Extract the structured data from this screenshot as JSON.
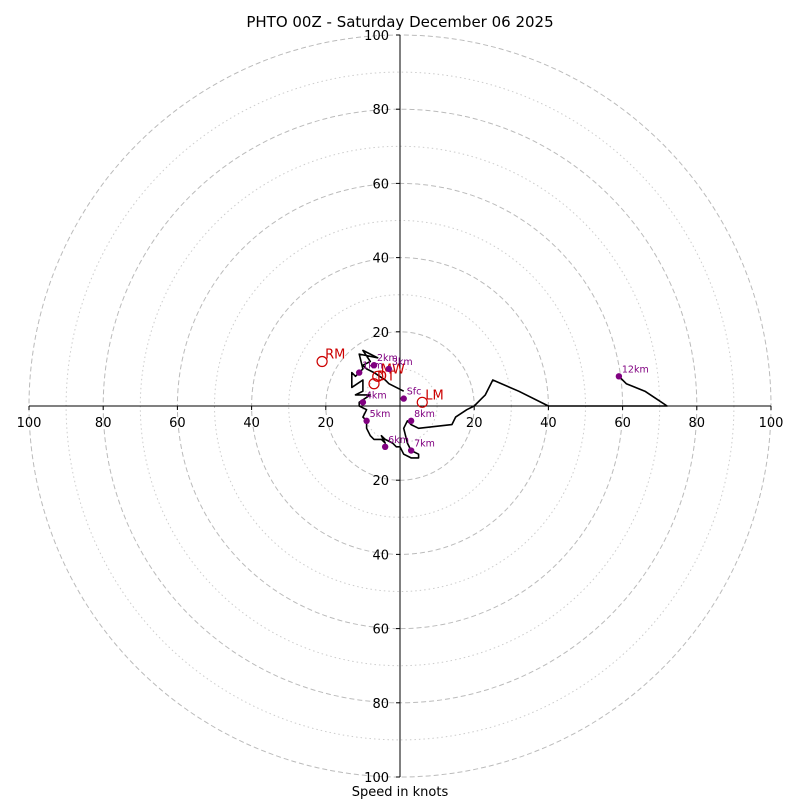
{
  "chart_data": {
    "type": "hodograph",
    "title": "PHTO 00Z - Saturday December 06 2025",
    "xlabel": "Speed in knots",
    "units": "knots",
    "range": [
      -100,
      100
    ],
    "x_ticks": [
      -100,
      -80,
      -60,
      -40,
      -20,
      20,
      40,
      60,
      80,
      100
    ],
    "y_ticks": [
      -100,
      -80,
      -60,
      -40,
      -20,
      20,
      40,
      60,
      80,
      100
    ],
    "tick_labels_abs": true,
    "rings_major": [
      20,
      40,
      60,
      80,
      100
    ],
    "rings_minor": [
      10,
      30,
      50,
      70,
      90
    ],
    "colors": {
      "trace": "#000000",
      "height": "#800080",
      "motion": "#cc0000",
      "grid_major": "#bbbbbb",
      "grid_minor": "#cccccc"
    },
    "trace": [
      [
        1,
        4
      ],
      [
        -3,
        6
      ],
      [
        -4,
        7
      ],
      [
        -7,
        9
      ],
      [
        -9,
        10
      ],
      [
        -10,
        11
      ],
      [
        -8,
        12
      ],
      [
        -10,
        15
      ],
      [
        -6,
        13
      ],
      [
        -11,
        14
      ],
      [
        -10,
        10
      ],
      [
        -12,
        8
      ],
      [
        -13,
        9
      ],
      [
        -13,
        5
      ],
      [
        -10,
        7
      ],
      [
        -10,
        4
      ],
      [
        -12,
        3
      ],
      [
        -10,
        3
      ],
      [
        -8,
        3
      ],
      [
        -11,
        1
      ],
      [
        -11,
        0
      ],
      [
        -9,
        -1
      ],
      [
        -10,
        -3
      ],
      [
        -9,
        -4
      ],
      [
        -9,
        -6
      ],
      [
        -8,
        -8
      ],
      [
        -7,
        -9
      ],
      [
        -5,
        -9
      ],
      [
        -4,
        -10
      ],
      [
        -5,
        -8
      ],
      [
        -4,
        -9
      ],
      [
        -2,
        -10
      ],
      [
        -1,
        -11
      ],
      [
        0,
        -11
      ],
      [
        1,
        -13
      ],
      [
        3,
        -14
      ],
      [
        5,
        -14
      ],
      [
        5,
        -13
      ],
      [
        3,
        -12
      ],
      [
        2,
        -10
      ],
      [
        1,
        -6
      ],
      [
        2,
        -4
      ],
      [
        3,
        -5
      ],
      [
        5,
        -6
      ],
      [
        14,
        -5
      ],
      [
        15,
        -3
      ],
      [
        18,
        -1
      ],
      [
        20,
        0
      ],
      [
        22,
        2
      ],
      [
        23,
        3
      ],
      [
        25,
        7
      ],
      [
        32,
        4
      ],
      [
        40,
        0
      ],
      [
        45,
        0
      ],
      [
        52,
        0
      ],
      [
        58,
        0
      ],
      [
        62,
        0
      ],
      [
        67,
        0
      ],
      [
        72,
        0
      ],
      [
        69,
        2
      ],
      [
        66,
        4
      ],
      [
        61,
        6
      ],
      [
        59,
        8
      ]
    ],
    "heights": [
      {
        "label": "Sfc",
        "u": 1,
        "v": 2
      },
      {
        "label": "1km",
        "u": -11,
        "v": 9
      },
      {
        "label": "2km",
        "u": -7,
        "v": 11
      },
      {
        "label": "3km",
        "u": -3,
        "v": 10
      },
      {
        "label": "4km",
        "u": -10,
        "v": 1
      },
      {
        "label": "5km",
        "u": -9,
        "v": -4
      },
      {
        "label": "6km",
        "u": -4,
        "v": -11
      },
      {
        "label": "7km",
        "u": 3,
        "v": -12
      },
      {
        "label": "8km",
        "u": 3,
        "v": -4
      },
      {
        "label": "12km",
        "u": 59,
        "v": 8
      }
    ],
    "storm_motions": [
      {
        "label": "RM",
        "u": -21,
        "v": 12
      },
      {
        "label": "LM",
        "u": 6,
        "v": 1
      },
      {
        "label": "MW",
        "u": -6,
        "v": 8
      },
      {
        "label": "DT",
        "u": -7,
        "v": 6
      }
    ]
  }
}
